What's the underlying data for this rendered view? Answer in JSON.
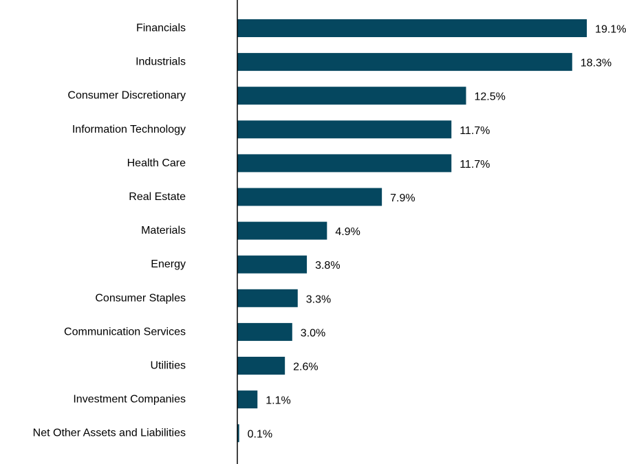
{
  "chart_data": {
    "type": "bar",
    "orientation": "horizontal",
    "categories": [
      "Financials",
      "Industrials",
      "Consumer Discretionary",
      "Information Technology",
      "Health Care",
      "Real Estate",
      "Materials",
      "Energy",
      "Consumer Staples",
      "Communication Services",
      "Utilities",
      "Investment Companies",
      "Net Other Assets and Liabilities"
    ],
    "values": [
      19.1,
      18.3,
      12.5,
      11.7,
      11.7,
      7.9,
      4.9,
      3.8,
      3.3,
      3.0,
      2.6,
      1.1,
      0.1
    ],
    "value_labels": [
      "19.1%",
      "18.3%",
      "12.5%",
      "11.7%",
      "11.7%",
      "7.9%",
      "4.9%",
      "3.8%",
      "3.3%",
      "3.0%",
      "2.6%",
      "1.1%",
      "0.1%"
    ],
    "unit": "%",
    "xlim": [
      0,
      20
    ],
    "grid": false,
    "bar_color": "#05475f"
  }
}
